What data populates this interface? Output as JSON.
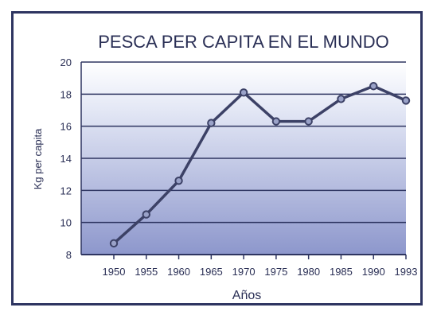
{
  "chart_data": {
    "type": "line",
    "title": "PESCA PER CAPITA EN EL MUNDO",
    "xlabel": "Años",
    "ylabel": "Kg per capita",
    "x": [
      "1950",
      "1955",
      "1960",
      "1965",
      "1970",
      "1975",
      "1980",
      "1985",
      "1990",
      "1993"
    ],
    "series": [
      {
        "values": [
          8.7,
          10.5,
          12.6,
          16.2,
          18.1,
          16.3,
          16.3,
          17.7,
          18.5,
          17.6
        ]
      }
    ],
    "yticks": [
      "8",
      "10",
      "12",
      "14",
      "16",
      "18",
      "20"
    ],
    "ylim": [
      8,
      20
    ],
    "grid": true
  },
  "colors": {
    "line": "#3c4166",
    "marker_fill": "#9aa2c8",
    "grid": "#2e3561",
    "text": "#2a2f55",
    "plot_bg_top": "#ffffff",
    "plot_bg_bottom": "#8d97cc"
  }
}
